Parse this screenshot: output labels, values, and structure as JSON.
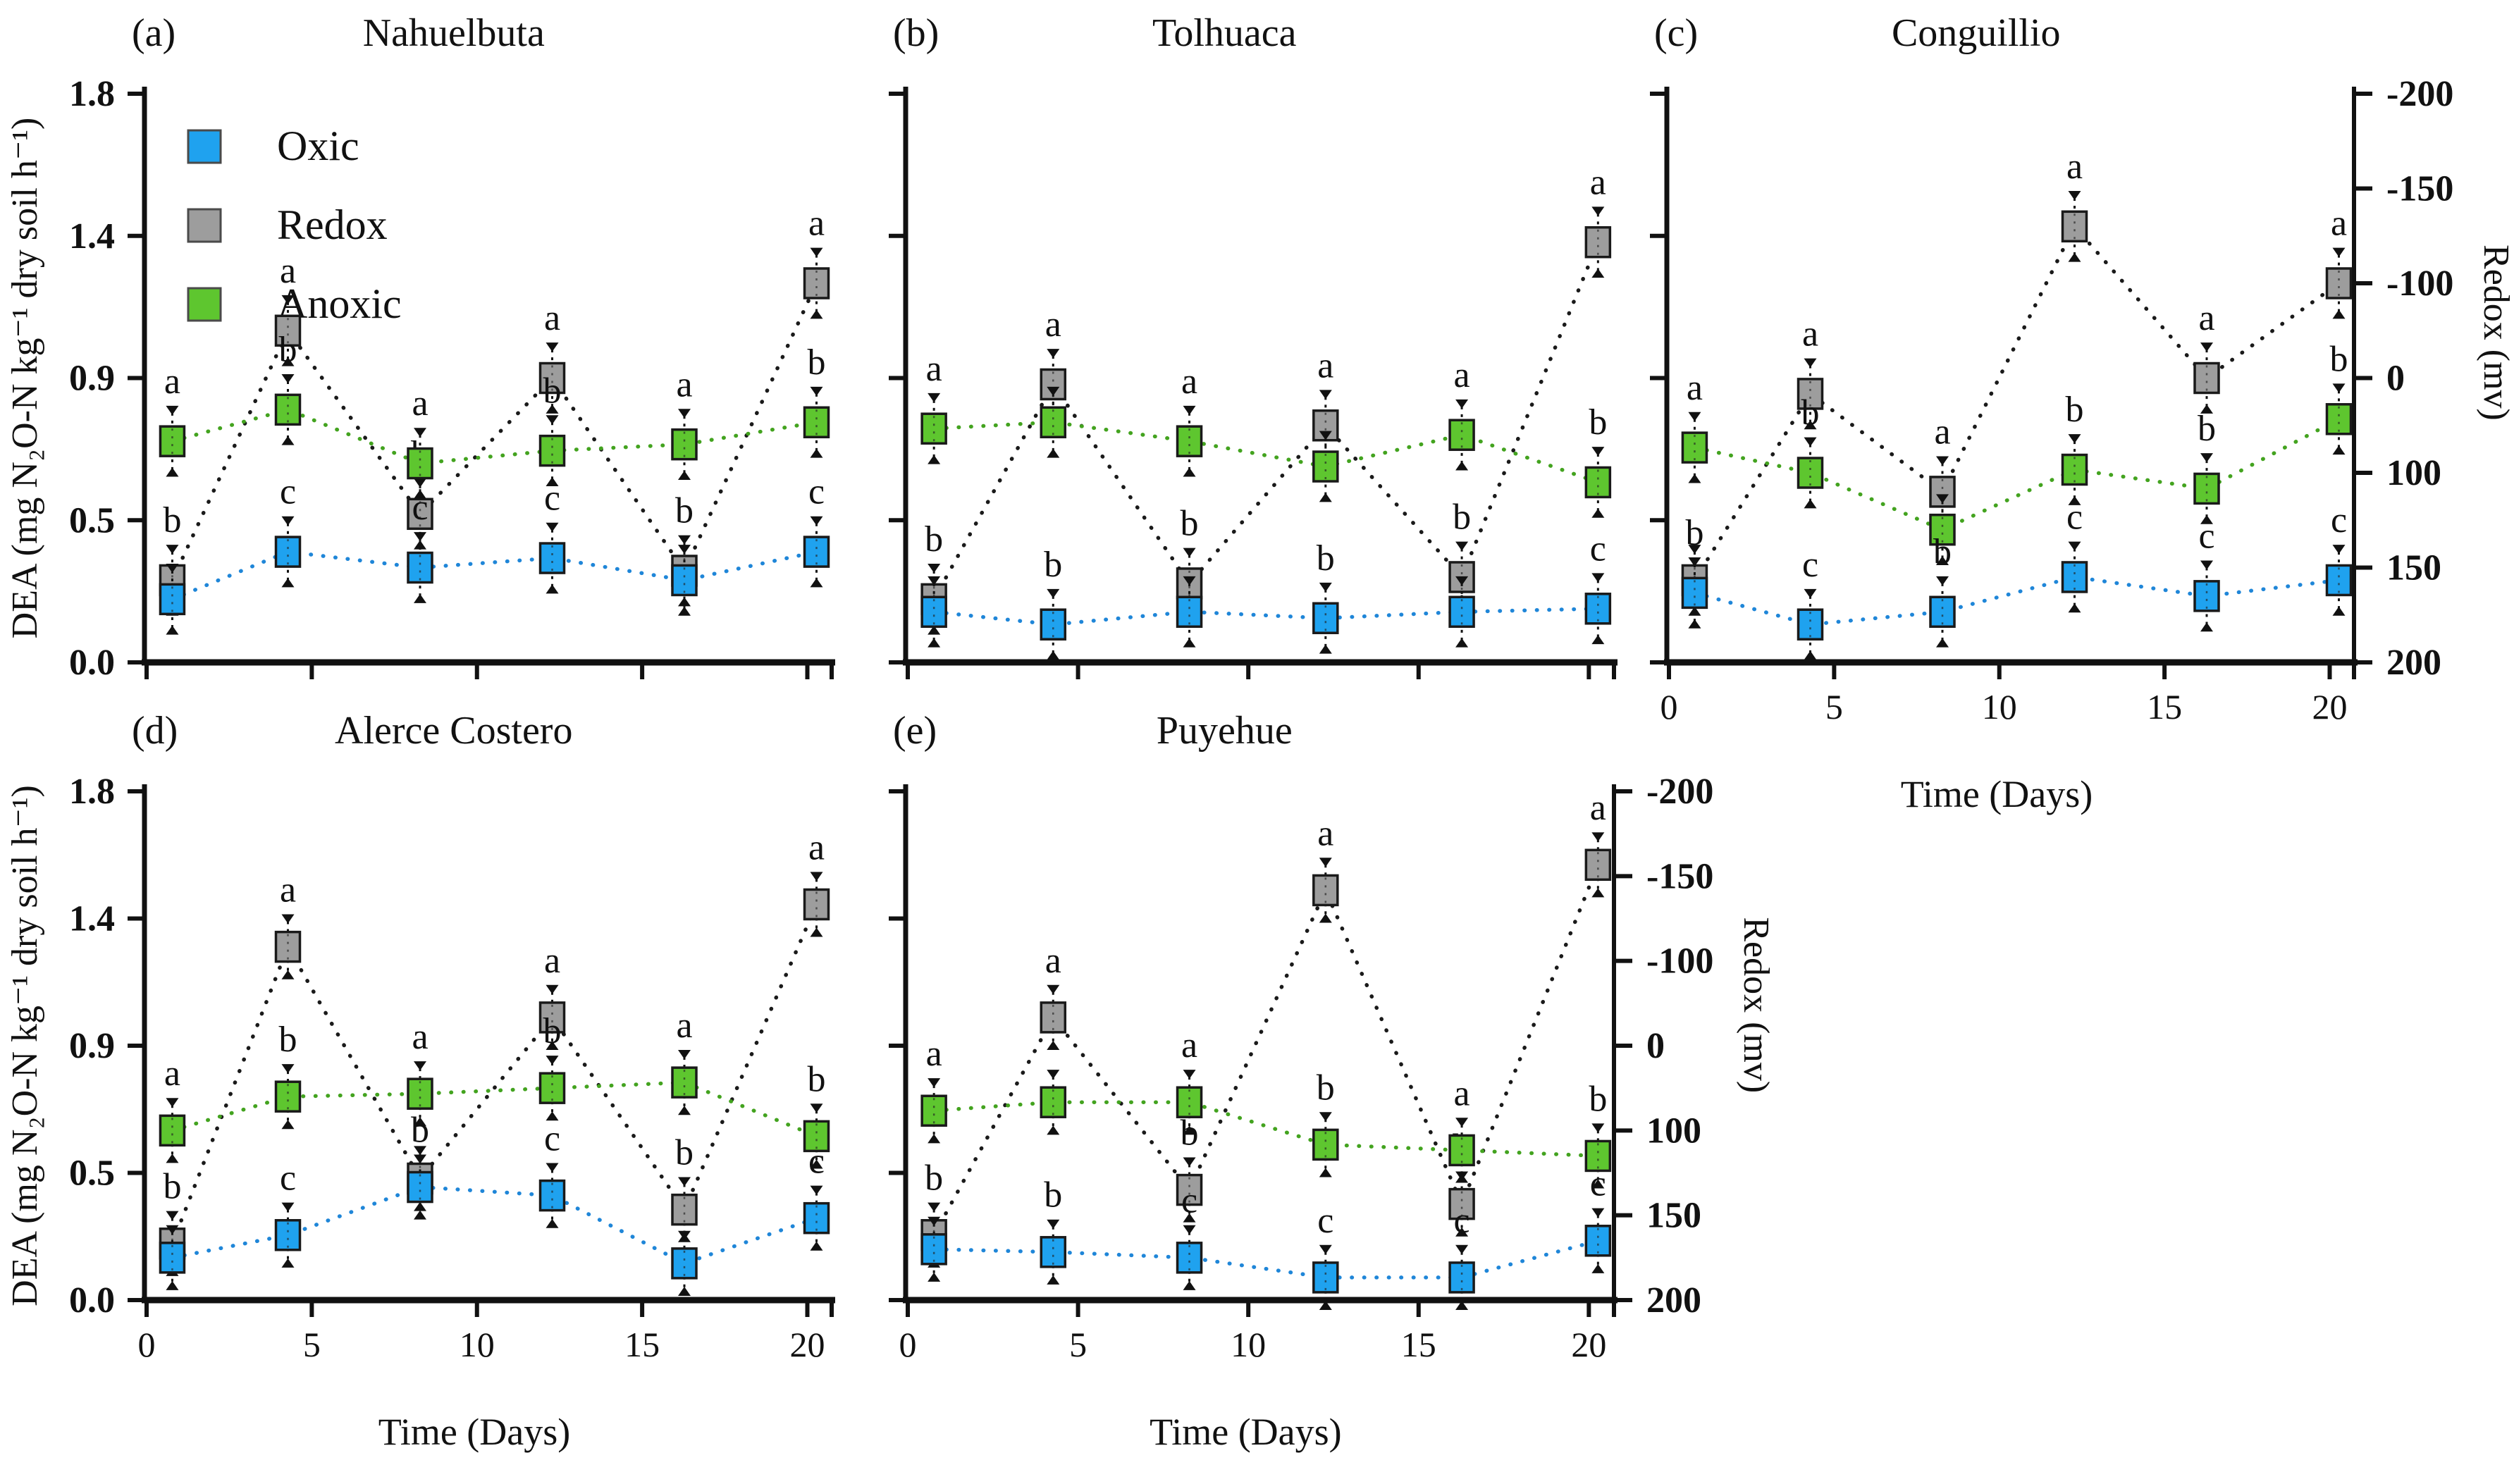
{
  "figure": {
    "left_axis_label": "DEA (mg N₂O-N kg⁻¹ dry soil h⁻¹)",
    "bottom_axis_label": "Time (Days)",
    "right_axis_label": "Redox (mv)",
    "left_tick_labels": [
      "0.0",
      "0.5",
      "0.9",
      "1.4",
      "1.8"
    ],
    "right_tick_labels": [
      "-200",
      "-150",
      "-100",
      "0",
      "100",
      "150",
      "200"
    ],
    "x_tick_labels": [
      "0",
      "5",
      "10",
      "15",
      "20"
    ],
    "legend": {
      "items": [
        {
          "label": "Oxic",
          "color": "#1FA2EF"
        },
        {
          "label": "Redox",
          "color": "#9D9D9D"
        },
        {
          "label": "Anoxic",
          "color": "#5EC62F"
        }
      ]
    },
    "colors": {
      "axis": "#111111",
      "oxic_fill": "#1FA2EF",
      "redox_fill": "#9D9D9D",
      "anoxic_fill": "#5EC62F",
      "oxic_line": "#1F86D8",
      "redox_line": "#1A1A1A",
      "anoxic_line": "#43A31F"
    }
  },
  "chart_data": [
    {
      "id": "a",
      "tag": "(a)",
      "title": "Nahuelbuta",
      "type": "line",
      "x": [
        0.5,
        4,
        8,
        12,
        16,
        20
      ],
      "x_ticks": [
        0,
        5,
        10,
        15,
        20
      ],
      "ylim": [
        0,
        1.8
      ],
      "error_bar": 0.09,
      "show_left_labels": true,
      "show_x_labels": false,
      "show_right_axis": false,
      "show_xlabel": false,
      "show_ylabel": true,
      "show_legend": true,
      "series": [
        {
          "name": "Redox",
          "values": [
            0.26,
            1.05,
            0.47,
            0.9,
            0.29,
            1.2
          ],
          "letters": [
            "b",
            "a",
            "b",
            "a",
            "b",
            "a"
          ]
        },
        {
          "name": "Anoxic",
          "values": [
            0.7,
            0.8,
            0.63,
            0.67,
            0.69,
            0.76
          ],
          "letters": [
            "a",
            "b",
            "a",
            "b",
            "a",
            "b"
          ]
        },
        {
          "name": "Oxic",
          "values": [
            0.2,
            0.35,
            0.3,
            0.33,
            0.26,
            0.35
          ],
          "letters": [
            null,
            "c",
            "c",
            "c",
            null,
            "c"
          ]
        }
      ]
    },
    {
      "id": "b",
      "tag": "(b)",
      "title": "Tolhuaca",
      "type": "line",
      "x": [
        0.5,
        4,
        8,
        12,
        16,
        20
      ],
      "x_ticks": [
        0,
        5,
        10,
        15,
        20
      ],
      "ylim": [
        0,
        1.8
      ],
      "error_bar": 0.09,
      "show_left_labels": false,
      "show_x_labels": false,
      "show_right_axis": false,
      "show_xlabel": false,
      "show_ylabel": false,
      "show_legend": false,
      "series": [
        {
          "name": "Redox",
          "values": [
            0.2,
            0.88,
            0.25,
            0.75,
            0.27,
            1.33
          ],
          "letters": [
            "b",
            "a",
            "b",
            "a",
            "b",
            "a"
          ]
        },
        {
          "name": "Anoxic",
          "values": [
            0.74,
            0.76,
            0.7,
            0.62,
            0.72,
            0.57
          ],
          "letters": [
            "a",
            null,
            "a",
            null,
            "a",
            "b"
          ]
        },
        {
          "name": "Oxic",
          "values": [
            0.16,
            0.12,
            0.16,
            0.14,
            0.16,
            0.17
          ],
          "letters": [
            null,
            "b",
            null,
            "b",
            null,
            "c"
          ]
        }
      ]
    },
    {
      "id": "c",
      "tag": "(c)",
      "title": "Conguillio",
      "type": "line",
      "x": [
        0.5,
        4,
        8,
        12,
        16,
        20
      ],
      "x_ticks": [
        0,
        5,
        10,
        15,
        20
      ],
      "ylim": [
        0,
        1.8
      ],
      "error_bar": 0.09,
      "show_left_labels": false,
      "show_x_labels": true,
      "show_right_axis": true,
      "show_xlabel": true,
      "show_ylabel": false,
      "show_legend": false,
      "series": [
        {
          "name": "Redox",
          "values": [
            0.26,
            0.85,
            0.54,
            1.38,
            0.9,
            1.2
          ],
          "letters": [
            null,
            "a",
            "a",
            "a",
            "a",
            "a"
          ]
        },
        {
          "name": "Anoxic",
          "values": [
            0.68,
            0.6,
            0.42,
            0.61,
            0.55,
            0.77
          ],
          "letters": [
            "a",
            "b",
            null,
            "b",
            "b",
            "b"
          ]
        },
        {
          "name": "Oxic",
          "values": [
            0.22,
            0.12,
            0.16,
            0.27,
            0.21,
            0.26
          ],
          "letters": [
            "b",
            "c",
            "b",
            "c",
            "c",
            "c"
          ]
        }
      ]
    },
    {
      "id": "d",
      "tag": "(d)",
      "title": "Alerce Costero",
      "type": "line",
      "x": [
        0.5,
        4,
        8,
        12,
        16,
        20
      ],
      "x_ticks": [
        0,
        5,
        10,
        15,
        20
      ],
      "ylim": [
        0,
        1.8
      ],
      "error_bar": 0.09,
      "show_left_labels": true,
      "show_x_labels": true,
      "show_right_axis": false,
      "show_xlabel": true,
      "show_ylabel": true,
      "show_legend": false,
      "series": [
        {
          "name": "Redox",
          "values": [
            0.2,
            1.25,
            0.43,
            1.0,
            0.32,
            1.4
          ],
          "letters": [
            "b",
            "a",
            null,
            "a",
            "b",
            "a"
          ]
        },
        {
          "name": "Anoxic",
          "values": [
            0.6,
            0.72,
            0.73,
            0.75,
            0.77,
            0.58
          ],
          "letters": [
            "a",
            "b",
            "a",
            "b",
            "a",
            "b"
          ]
        },
        {
          "name": "Oxic",
          "values": [
            0.15,
            0.23,
            0.4,
            0.37,
            0.13,
            0.29
          ],
          "letters": [
            null,
            "c",
            "b",
            "c",
            null,
            "c"
          ]
        }
      ]
    },
    {
      "id": "e",
      "tag": "(e)",
      "title": "Puyehue",
      "type": "line",
      "x": [
        0.5,
        4,
        8,
        12,
        16,
        20
      ],
      "x_ticks": [
        0,
        5,
        10,
        15,
        20
      ],
      "ylim": [
        0,
        1.8
      ],
      "error_bar": 0.09,
      "show_left_labels": false,
      "show_x_labels": true,
      "show_right_axis": true,
      "show_xlabel": true,
      "show_ylabel": false,
      "show_legend": false,
      "series": [
        {
          "name": "Redox",
          "values": [
            0.23,
            1.0,
            0.39,
            1.45,
            0.34,
            1.54
          ],
          "letters": [
            "b",
            "a",
            "b",
            "a",
            "b",
            "a"
          ]
        },
        {
          "name": "Anoxic",
          "values": [
            0.67,
            0.7,
            0.7,
            0.55,
            0.53,
            0.51
          ],
          "letters": [
            "a",
            null,
            "a",
            "b",
            "a",
            "b"
          ]
        },
        {
          "name": "Oxic",
          "values": [
            0.18,
            0.17,
            0.15,
            0.08,
            0.08,
            0.21
          ],
          "letters": [
            null,
            "b",
            "c",
            "c",
            "c",
            "c"
          ]
        }
      ]
    }
  ]
}
